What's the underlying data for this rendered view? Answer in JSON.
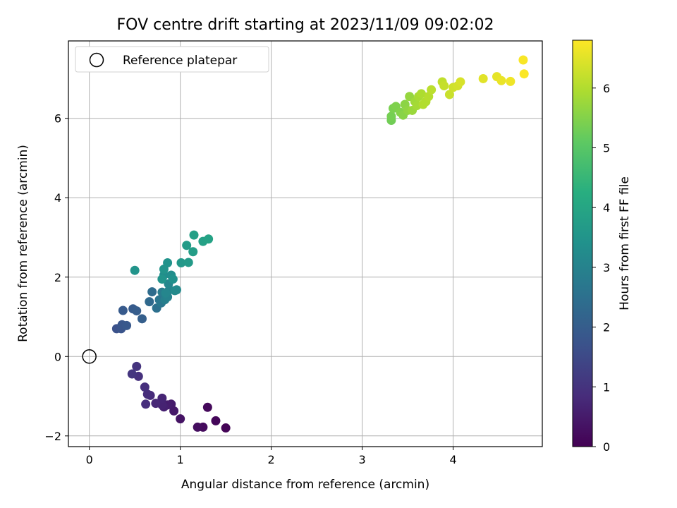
{
  "chart_data": {
    "type": "scatter",
    "title": "FOV centre drift starting at 2023/11/09 09:02:02",
    "xlabel": "Angular distance from reference (arcmin)",
    "ylabel": "Rotation from reference (arcmin)",
    "xlim": [
      -0.23,
      4.98
    ],
    "ylim": [
      -2.27,
      7.95
    ],
    "xticks": [
      0,
      1,
      2,
      3,
      4
    ],
    "yticks": [
      -2,
      0,
      2,
      4,
      6
    ],
    "grid": true,
    "legend": {
      "placement": "top-left",
      "entries": [
        "Reference platepar"
      ]
    },
    "reference_point": {
      "x": 0,
      "y": 0
    },
    "colorbar": {
      "label": "Hours from first FF file",
      "range": [
        0,
        6.8
      ],
      "ticks": [
        0,
        1,
        2,
        3,
        4,
        5,
        6
      ],
      "colormap": "viridis"
    },
    "series": [
      {
        "points": [
          {
            "x": 1.5,
            "y": -1.8,
            "c": 0.05
          },
          {
            "x": 1.39,
            "y": -1.62,
            "c": 0.1
          },
          {
            "x": 1.3,
            "y": -1.28,
            "c": 0.15
          },
          {
            "x": 1.25,
            "y": -1.78,
            "c": 0.2
          },
          {
            "x": 1.19,
            "y": -1.78,
            "c": 0.25
          },
          {
            "x": 1.0,
            "y": -1.57,
            "c": 0.35
          },
          {
            "x": 0.93,
            "y": -1.37,
            "c": 0.45
          },
          {
            "x": 0.9,
            "y": -1.2,
            "c": 0.5
          },
          {
            "x": 0.86,
            "y": -1.22,
            "c": 0.55
          },
          {
            "x": 0.82,
            "y": -1.27,
            "c": 0.6
          },
          {
            "x": 0.8,
            "y": -1.22,
            "c": 0.65
          },
          {
            "x": 0.8,
            "y": -1.05,
            "c": 0.7
          },
          {
            "x": 0.73,
            "y": -1.18,
            "c": 0.75
          },
          {
            "x": 0.67,
            "y": -0.98,
            "c": 0.8
          },
          {
            "x": 0.64,
            "y": -0.95,
            "c": 0.85
          },
          {
            "x": 0.62,
            "y": -1.2,
            "c": 0.88
          },
          {
            "x": 0.61,
            "y": -0.77,
            "c": 0.9
          },
          {
            "x": 0.54,
            "y": -0.5,
            "c": 0.95
          },
          {
            "x": 0.52,
            "y": -0.25,
            "c": 1.0
          },
          {
            "x": 0.47,
            "y": -0.44,
            "c": 1.05
          },
          {
            "x": 0.3,
            "y": 0.7,
            "c": 1.7
          },
          {
            "x": 0.35,
            "y": 0.7,
            "c": 1.75
          },
          {
            "x": 0.36,
            "y": 0.8,
            "c": 1.8
          },
          {
            "x": 0.41,
            "y": 0.78,
            "c": 1.85
          },
          {
            "x": 0.37,
            "y": 1.16,
            "c": 1.9
          },
          {
            "x": 0.48,
            "y": 1.2,
            "c": 1.95
          },
          {
            "x": 0.52,
            "y": 1.15,
            "c": 2.0
          },
          {
            "x": 0.58,
            "y": 0.95,
            "c": 2.05
          },
          {
            "x": 0.66,
            "y": 1.38,
            "c": 2.3
          },
          {
            "x": 0.69,
            "y": 1.63,
            "c": 2.4
          },
          {
            "x": 0.74,
            "y": 1.22,
            "c": 2.5
          },
          {
            "x": 0.77,
            "y": 1.43,
            "c": 2.6
          },
          {
            "x": 0.79,
            "y": 1.35,
            "c": 2.7
          },
          {
            "x": 0.8,
            "y": 1.62,
            "c": 2.8
          },
          {
            "x": 0.83,
            "y": 1.43,
            "c": 2.9
          },
          {
            "x": 0.86,
            "y": 1.5,
            "c": 3.0
          },
          {
            "x": 0.88,
            "y": 1.68,
            "c": 3.0
          },
          {
            "x": 0.87,
            "y": 1.83,
            "c": 3.1
          },
          {
            "x": 0.84,
            "y": 1.6,
            "c": 3.1
          },
          {
            "x": 0.94,
            "y": 1.66,
            "c": 3.2
          },
          {
            "x": 0.96,
            "y": 1.68,
            "c": 3.2
          },
          {
            "x": 0.82,
            "y": 2.05,
            "c": 3.3
          },
          {
            "x": 0.9,
            "y": 2.05,
            "c": 3.3
          },
          {
            "x": 0.92,
            "y": 1.95,
            "c": 3.4
          },
          {
            "x": 0.86,
            "y": 2.36,
            "c": 3.45
          },
          {
            "x": 0.82,
            "y": 2.2,
            "c": 3.5
          },
          {
            "x": 0.8,
            "y": 1.95,
            "c": 3.5
          },
          {
            "x": 1.01,
            "y": 2.36,
            "c": 3.6
          },
          {
            "x": 1.09,
            "y": 2.37,
            "c": 3.65
          },
          {
            "x": 1.07,
            "y": 2.8,
            "c": 3.7
          },
          {
            "x": 1.14,
            "y": 2.64,
            "c": 3.75
          },
          {
            "x": 1.15,
            "y": 3.06,
            "c": 3.8
          },
          {
            "x": 1.25,
            "y": 2.9,
            "c": 3.85
          },
          {
            "x": 1.31,
            "y": 2.96,
            "c": 3.9
          },
          {
            "x": 0.5,
            "y": 2.17,
            "c": 3.5
          },
          {
            "x": 3.32,
            "y": 5.95,
            "c": 5.3
          },
          {
            "x": 3.32,
            "y": 6.05,
            "c": 5.35
          },
          {
            "x": 3.34,
            "y": 6.25,
            "c": 5.4
          },
          {
            "x": 3.37,
            "y": 6.3,
            "c": 5.45
          },
          {
            "x": 3.42,
            "y": 6.15,
            "c": 5.5
          },
          {
            "x": 3.45,
            "y": 6.08,
            "c": 5.55
          },
          {
            "x": 3.47,
            "y": 6.35,
            "c": 5.6
          },
          {
            "x": 3.5,
            "y": 6.2,
            "c": 5.65
          },
          {
            "x": 3.52,
            "y": 6.55,
            "c": 5.7
          },
          {
            "x": 3.55,
            "y": 6.2,
            "c": 5.75
          },
          {
            "x": 3.58,
            "y": 6.42,
            "c": 5.8
          },
          {
            "x": 3.6,
            "y": 6.32,
            "c": 5.85
          },
          {
            "x": 3.62,
            "y": 6.55,
            "c": 5.9
          },
          {
            "x": 3.65,
            "y": 6.62,
            "c": 5.95
          },
          {
            "x": 3.67,
            "y": 6.35,
            "c": 6.0
          },
          {
            "x": 3.7,
            "y": 6.42,
            "c": 6.0
          },
          {
            "x": 3.73,
            "y": 6.55,
            "c": 6.05
          },
          {
            "x": 3.76,
            "y": 6.72,
            "c": 6.1
          },
          {
            "x": 3.88,
            "y": 6.92,
            "c": 6.15
          },
          {
            "x": 3.9,
            "y": 6.82,
            "c": 6.2
          },
          {
            "x": 3.96,
            "y": 6.6,
            "c": 6.25
          },
          {
            "x": 4.0,
            "y": 6.78,
            "c": 6.3
          },
          {
            "x": 4.05,
            "y": 6.82,
            "c": 6.35
          },
          {
            "x": 4.08,
            "y": 6.92,
            "c": 6.4
          },
          {
            "x": 4.33,
            "y": 7.0,
            "c": 6.5
          },
          {
            "x": 4.48,
            "y": 7.05,
            "c": 6.55
          },
          {
            "x": 4.53,
            "y": 6.95,
            "c": 6.6
          },
          {
            "x": 4.63,
            "y": 6.93,
            "c": 6.65
          },
          {
            "x": 4.77,
            "y": 7.47,
            "c": 6.75
          },
          {
            "x": 4.78,
            "y": 7.12,
            "c": 6.78
          }
        ]
      }
    ]
  }
}
